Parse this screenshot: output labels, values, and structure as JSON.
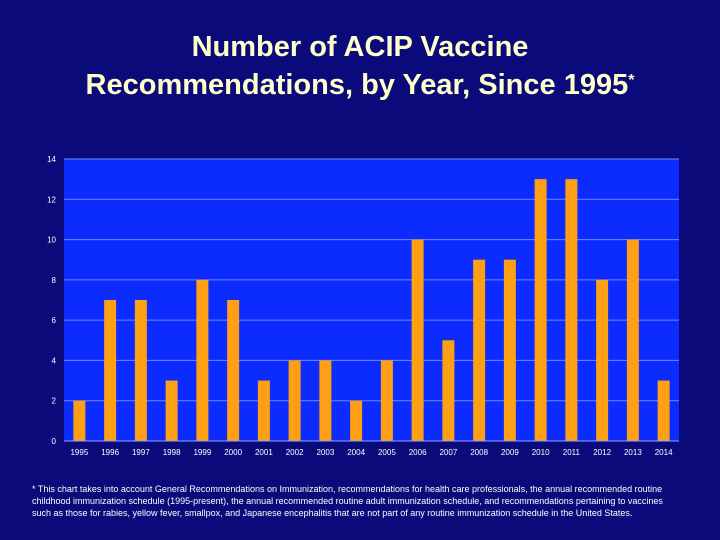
{
  "title_line1": "Number of ACIP Vaccine",
  "title_line2": "Recommendations, by Year, Since 1995",
  "title_mark": "*",
  "footnote": "* This chart takes into account General Recommendations on Immunization, recommendations for health care professionals, the annual recommended routine childhood immunization schedule (1995-present), the annual recommended routine adult immunization schedule, and recommendations pertaining to vaccines such as those for rabies, yellow fever, smallpox, and Japanese encephalitis that are not part of any routine immunization schedule in the United States.",
  "colors": {
    "background": "#0a0a7a",
    "plot": "#0c2cff",
    "bar": "#ff9f14",
    "title": "#ffffcc"
  },
  "chart_data": {
    "type": "bar",
    "categories": [
      "1995",
      "1996",
      "1997",
      "1998",
      "1999",
      "2000",
      "2001",
      "2002",
      "2003",
      "2004",
      "2005",
      "2006",
      "2007",
      "2008",
      "2009",
      "2010",
      "2011",
      "2012",
      "2013",
      "2014"
    ],
    "values": [
      2,
      7,
      7,
      3,
      8,
      7,
      3,
      4,
      4,
      2,
      4,
      10,
      5,
      9,
      9,
      13,
      13,
      8,
      10,
      3
    ],
    "yticks": [
      0,
      2,
      4,
      6,
      8,
      10,
      12,
      14
    ],
    "ylim": [
      0,
      14
    ],
    "grid": true,
    "legend": "none"
  }
}
